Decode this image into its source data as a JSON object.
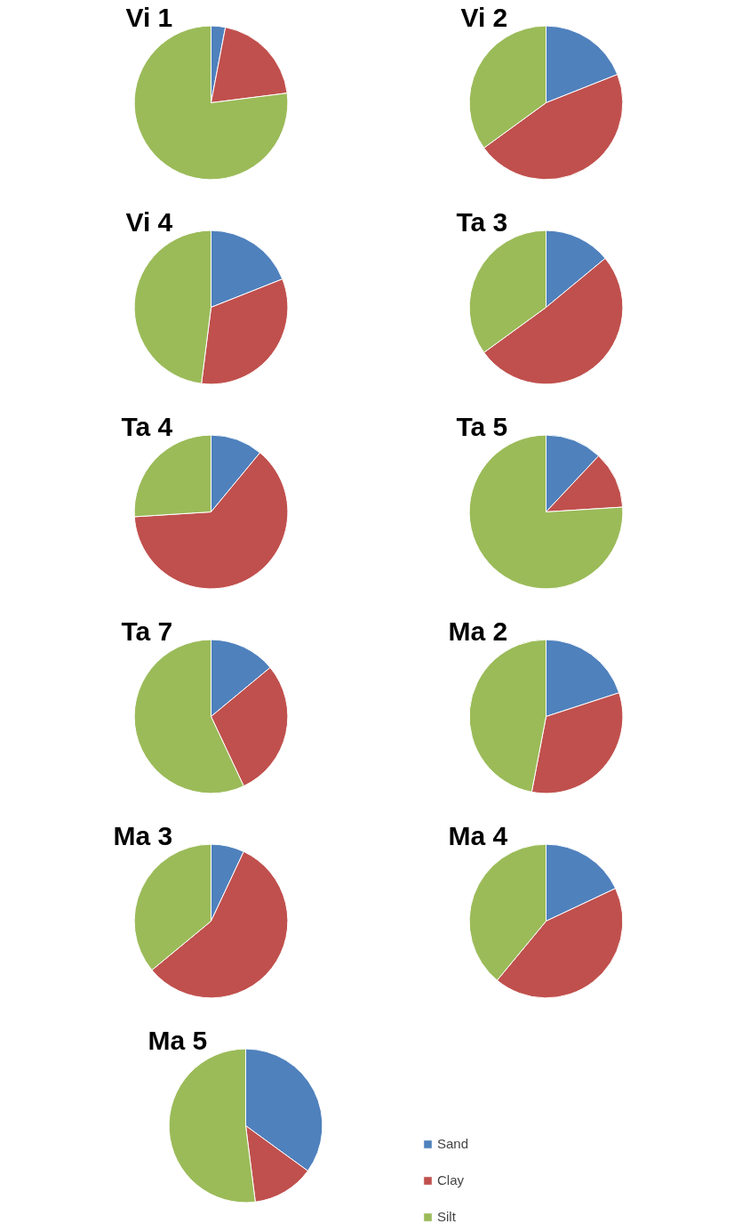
{
  "chart_data": [
    {
      "type": "pie",
      "title": "Vi 1",
      "categories": [
        null,
        null,
        null
      ],
      "values": [
        3,
        20,
        77
      ],
      "colors": [
        "#4f81bd",
        "#c0504d",
        "#9bbb59"
      ],
      "legend": false
    },
    {
      "type": "pie",
      "title": "Vi 2",
      "categories": [
        null,
        null,
        null
      ],
      "values": [
        19,
        46,
        35
      ],
      "colors": [
        "#4f81bd",
        "#c0504d",
        "#9bbb59"
      ],
      "legend": false
    },
    {
      "type": "pie",
      "title": "Vi 4",
      "categories": [
        null,
        null,
        null
      ],
      "values": [
        19,
        33,
        48
      ],
      "colors": [
        "#4f81bd",
        "#c0504d",
        "#9bbb59"
      ],
      "legend": false
    },
    {
      "type": "pie",
      "title": "Ta 3",
      "categories": [
        null,
        null,
        null
      ],
      "values": [
        14,
        51,
        35
      ],
      "colors": [
        "#4f81bd",
        "#c0504d",
        "#9bbb59"
      ],
      "legend": false
    },
    {
      "type": "pie",
      "title": "Ta 4",
      "categories": [
        null,
        null,
        null
      ],
      "values": [
        11,
        63,
        26
      ],
      "colors": [
        "#4f81bd",
        "#c0504d",
        "#9bbb59"
      ],
      "legend": false
    },
    {
      "type": "pie",
      "title": "Ta 5",
      "categories": [
        null,
        null,
        null
      ],
      "values": [
        12,
        12,
        76
      ],
      "colors": [
        "#4f81bd",
        "#c0504d",
        "#9bbb59"
      ],
      "legend": false
    },
    {
      "type": "pie",
      "title": "Ta 7",
      "categories": [
        null,
        null,
        null
      ],
      "values": [
        14,
        29,
        57
      ],
      "colors": [
        "#4f81bd",
        "#c0504d",
        "#9bbb59"
      ],
      "legend": false
    },
    {
      "type": "pie",
      "title": "Ma 2",
      "categories": [
        null,
        null,
        null
      ],
      "values": [
        20,
        33,
        47
      ],
      "colors": [
        "#4f81bd",
        "#c0504d",
        "#9bbb59"
      ],
      "legend": false
    },
    {
      "type": "pie",
      "title": "Ma 3",
      "categories": [
        null,
        null,
        null
      ],
      "values": [
        7,
        57,
        36
      ],
      "colors": [
        "#4f81bd",
        "#c0504d",
        "#9bbb59"
      ],
      "legend": false
    },
    {
      "type": "pie",
      "title": "Ma 4",
      "categories": [
        null,
        null,
        null
      ],
      "values": [
        18,
        43,
        39
      ],
      "colors": [
        "#4f81bd",
        "#c0504d",
        "#9bbb59"
      ],
      "legend": false
    },
    {
      "type": "pie",
      "title": "Ma 5",
      "categories": [
        "Sand",
        "Clay",
        "Silt"
      ],
      "values": [
        35,
        13,
        52
      ],
      "colors": [
        "#4f81bd",
        "#c0504d",
        "#9bbb59"
      ],
      "legend": "bottom right"
    }
  ]
}
